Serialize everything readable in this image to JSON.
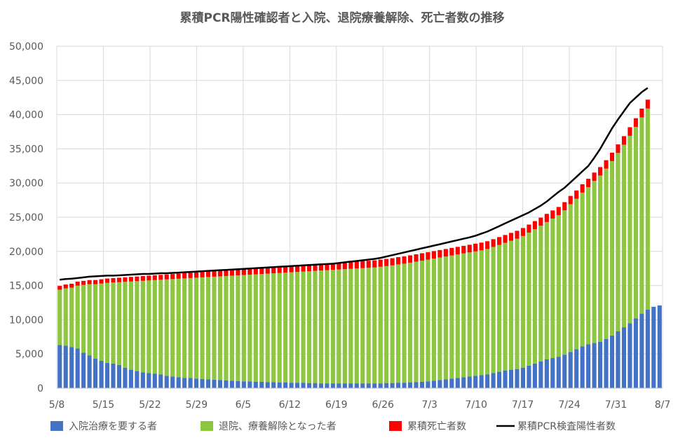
{
  "chart_data": {
    "type": "bar",
    "title": "累積PCR陽性確認者と入院、退院療養解除、死亡者数の推移",
    "x_ticks": [
      "5/8",
      "5/15",
      "5/22",
      "5/29",
      "6/5",
      "6/12",
      "6/19",
      "6/26",
      "7/3",
      "7/10",
      "7/17",
      "7/24",
      "7/31",
      "8/7"
    ],
    "ylim": [
      0,
      50000
    ],
    "y_ticks": [
      "0",
      "5,000",
      "10,000",
      "15,000",
      "20,000",
      "25,000",
      "30,000",
      "35,000",
      "40,000",
      "45,000",
      "50,000"
    ],
    "grid": true,
    "legend_position": "bottom",
    "series": [
      {
        "name": "入院治療を要する者",
        "kind": "stacked-bar",
        "color": "#4472c4",
        "values": [
          6300,
          6200,
          6000,
          5800,
          5200,
          4800,
          4300,
          4000,
          3700,
          3600,
          3400,
          3000,
          2700,
          2500,
          2300,
          2200,
          2100,
          2000,
          1800,
          1700,
          1600,
          1500,
          1500,
          1400,
          1350,
          1300,
          1250,
          1200,
          1150,
          1100,
          1050,
          1000,
          1000,
          950,
          950,
          900,
          900,
          850,
          850,
          800,
          800,
          800,
          750,
          750,
          700,
          700,
          700,
          700,
          700,
          700,
          700,
          700,
          700,
          700,
          700,
          750,
          750,
          800,
          800,
          850,
          900,
          950,
          1000,
          1100,
          1200,
          1300,
          1400,
          1500,
          1600,
          1700,
          1800,
          1900,
          2000,
          2200,
          2400,
          2600,
          2700,
          2800,
          3000,
          3300,
          3600,
          3900,
          4200,
          4400,
          4600,
          4900,
          5300,
          5700,
          6100,
          6400,
          6600,
          6800,
          7200,
          7700,
          8300,
          8900,
          9500,
          10200,
          10900,
          11500,
          11900,
          12100
        ]
      },
      {
        "name": "退院、療養解除となった者",
        "kind": "stacked-bar",
        "color": "#8dc63f",
        "values": [
          8100,
          8400,
          8700,
          9200,
          9900,
          10400,
          10900,
          11300,
          11700,
          11850,
          12100,
          12550,
          12900,
          13150,
          13400,
          13550,
          13700,
          13850,
          14100,
          14250,
          14400,
          14550,
          14600,
          14750,
          14850,
          14950,
          15050,
          15150,
          15250,
          15350,
          15450,
          15550,
          15600,
          15700,
          15750,
          15850,
          15900,
          16000,
          16050,
          16150,
          16200,
          16250,
          16350,
          16400,
          16500,
          16550,
          16600,
          16650,
          16700,
          16750,
          16800,
          16850,
          16900,
          16950,
          17050,
          17100,
          17200,
          17300,
          17400,
          17500,
          17600,
          17700,
          17800,
          17850,
          17900,
          17950,
          18000,
          18050,
          18100,
          18150,
          18200,
          18250,
          18350,
          18450,
          18550,
          18650,
          18850,
          19050,
          19250,
          19450,
          19650,
          19850,
          20100,
          20400,
          20700,
          21100,
          21600,
          22000,
          22500,
          23000,
          23700,
          24300,
          24900,
          25500,
          26100,
          26700,
          27400,
          28000,
          28700,
          29400
        ]
      },
      {
        "name": "累積死亡者数",
        "kind": "stacked-bar",
        "color": "#ff0000",
        "values": [
          550,
          560,
          570,
          580,
          590,
          600,
          610,
          620,
          630,
          640,
          650,
          660,
          670,
          680,
          690,
          700,
          710,
          720,
          730,
          740,
          750,
          760,
          770,
          780,
          790,
          800,
          810,
          820,
          830,
          840,
          850,
          860,
          870,
          880,
          890,
          900,
          910,
          920,
          930,
          940,
          950,
          960,
          970,
          980,
          990,
          1000,
          1005,
          1010,
          1015,
          1020,
          1025,
          1030,
          1035,
          1040,
          1045,
          1050,
          1055,
          1060,
          1065,
          1070,
          1075,
          1080,
          1085,
          1090,
          1095,
          1100,
          1105,
          1110,
          1115,
          1120,
          1125,
          1130,
          1135,
          1140,
          1145,
          1150,
          1155,
          1160,
          1165,
          1170,
          1175,
          1180,
          1185,
          1190,
          1195,
          1200,
          1205,
          1210,
          1215,
          1220,
          1225,
          1230,
          1235,
          1240,
          1245,
          1250,
          1260,
          1270,
          1280,
          1290
        ]
      },
      {
        "name": "累積PCR検査陽性者数",
        "kind": "line",
        "color": "#000000",
        "values": [
          15850,
          15950,
          16000,
          16100,
          16200,
          16300,
          16350,
          16400,
          16450,
          16450,
          16500,
          16550,
          16600,
          16650,
          16700,
          16700,
          16750,
          16800,
          16800,
          16850,
          16900,
          16950,
          17000,
          17050,
          17100,
          17150,
          17200,
          17250,
          17300,
          17350,
          17400,
          17450,
          17500,
          17550,
          17600,
          17650,
          17700,
          17750,
          17800,
          17850,
          17900,
          17950,
          18000,
          18050,
          18100,
          18150,
          18200,
          18300,
          18400,
          18500,
          18600,
          18700,
          18800,
          18900,
          19050,
          19250,
          19450,
          19650,
          19850,
          20050,
          20250,
          20450,
          20650,
          20850,
          21050,
          21250,
          21450,
          21650,
          21850,
          22050,
          22300,
          22600,
          22900,
          23300,
          23700,
          24100,
          24500,
          24900,
          25300,
          25700,
          26200,
          26700,
          27300,
          28000,
          28700,
          29300,
          30100,
          30900,
          31700,
          32500,
          33700,
          35000,
          36500,
          38000,
          39300,
          40500,
          41700,
          42500,
          43300,
          43900
        ]
      }
    ]
  }
}
